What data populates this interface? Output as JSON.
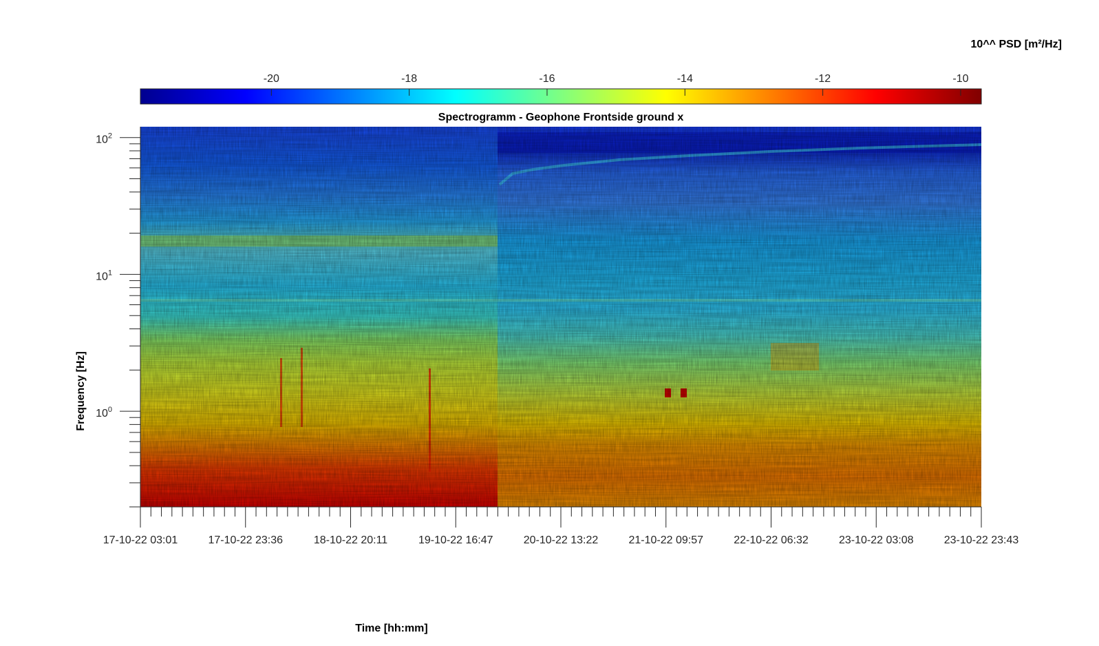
{
  "chart_data": {
    "type": "heatmap",
    "title": "Spectrogramm - Geophone Frontside ground x",
    "xlabel": "Time [hh:mm]",
    "ylabel": "Frequency [Hz]",
    "colorbar": {
      "label": "10^^ PSD [m²/Hz]",
      "range": [
        -21.9,
        -9.7
      ],
      "ticks": [
        "-20",
        "-18",
        "-16",
        "-14",
        "-12",
        "-10"
      ],
      "tick_values": [
        -20,
        -18,
        -16,
        -14,
        -12,
        -10
      ],
      "colormap": "jet"
    },
    "x_ticks": [
      "17-10-22 03:01",
      "17-10-22 23:36",
      "18-10-22 20:11",
      "19-10-22 16:47",
      "20-10-22 13:22",
      "21-10-22 09:57",
      "22-10-22 06:32",
      "23-10-22 03:08",
      "23-10-22 23:43"
    ],
    "y_scale": "log",
    "y_range": [
      0.2,
      120
    ],
    "y_ticks": [
      {
        "base": "10",
        "exp": "0",
        "value": 1
      },
      {
        "base": "10",
        "exp": "1",
        "value": 10
      },
      {
        "base": "10",
        "exp": "2",
        "value": 100
      }
    ],
    "grid": false
  }
}
